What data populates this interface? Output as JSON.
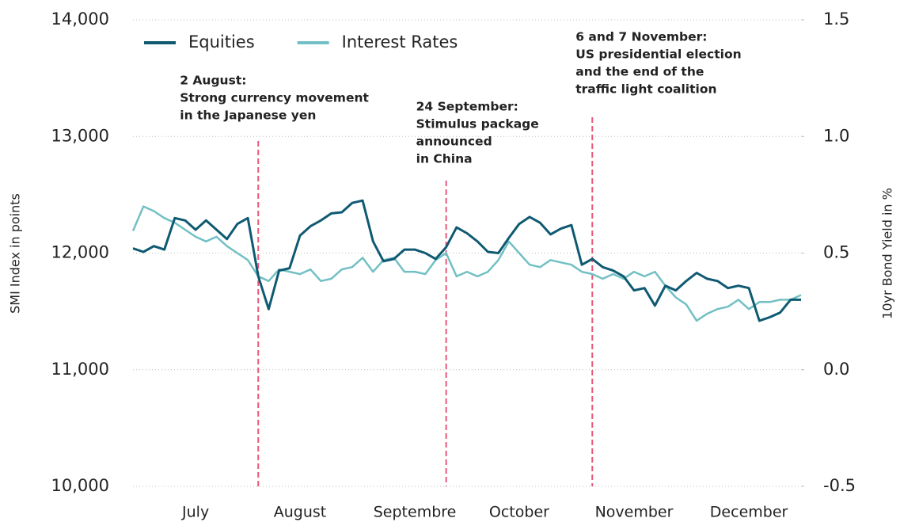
{
  "chart_data": {
    "type": "line",
    "y_label": "SMI Index in points",
    "y2_label": "10yr Bond Yield in %",
    "categories": [
      null,
      null,
      null,
      null,
      null,
      null,
      "July",
      null,
      null,
      null,
      null,
      null,
      null,
      null,
      null,
      null,
      "August",
      null,
      null,
      null,
      null,
      null,
      null,
      null,
      null,
      null,
      null,
      "Septembre",
      null,
      null,
      null,
      null,
      null,
      null,
      null,
      null,
      null,
      "October",
      null,
      null,
      null,
      null,
      null,
      null,
      null,
      null,
      null,
      null,
      "November",
      null,
      null,
      null,
      null,
      null,
      null,
      null,
      null,
      null,
      null,
      "December",
      null,
      null,
      null,
      null,
      null
    ],
    "series": [
      {
        "name": "Equities",
        "color": "#0f5a72",
        "axis": "y",
        "values": [
          12040,
          12010,
          12060,
          12030,
          12300,
          12280,
          12200,
          12280,
          12200,
          12120,
          12250,
          12300,
          11800,
          11520,
          11850,
          11870,
          12150,
          12230,
          12280,
          12340,
          12350,
          12430,
          12450,
          12100,
          11930,
          11950,
          12030,
          12030,
          12000,
          11950,
          12050,
          12220,
          12170,
          12100,
          12010,
          12000,
          12130,
          12250,
          12310,
          12260,
          12160,
          12210,
          12240,
          11900,
          11950,
          11880,
          11850,
          11800,
          11680,
          11700,
          11550,
          11720,
          11680,
          11760,
          11830,
          11780,
          11760,
          11700,
          11720,
          11700,
          11420,
          11450,
          11490,
          11600,
          11600
        ]
      },
      {
        "name": "Interest Rates",
        "color": "#72c0c4",
        "axis": "y2",
        "values": [
          0.595,
          0.7,
          0.68,
          0.65,
          0.63,
          0.6,
          0.57,
          0.55,
          0.57,
          0.53,
          0.5,
          0.47,
          0.4,
          0.38,
          0.43,
          0.42,
          0.41,
          0.43,
          0.38,
          0.39,
          0.43,
          0.44,
          0.48,
          0.42,
          0.47,
          0.48,
          0.42,
          0.42,
          0.41,
          0.47,
          0.5,
          0.4,
          0.42,
          0.4,
          0.42,
          0.47,
          0.55,
          0.5,
          0.45,
          0.44,
          0.47,
          0.46,
          0.45,
          0.42,
          0.41,
          0.39,
          0.41,
          0.39,
          0.42,
          0.4,
          0.42,
          0.36,
          0.31,
          0.28,
          0.21,
          0.24,
          0.26,
          0.27,
          0.3,
          0.26,
          0.29,
          0.29,
          0.3,
          0.3,
          0.32
        ]
      }
    ],
    "ylim": [
      10000,
      14000
    ],
    "yticks": [
      {
        "value": 10000,
        "label": "10,000"
      },
      {
        "value": 11000,
        "label": "11,000"
      },
      {
        "value": 12000,
        "label": "12,000"
      },
      {
        "value": 13000,
        "label": "13,000"
      },
      {
        "value": 14000,
        "label": "14,000"
      }
    ],
    "y2lim": [
      -0.5,
      1.5
    ],
    "y2ticks": [
      -0.5,
      {
        "value": 0,
        "label": "0.0"
      },
      0.5,
      {
        "value": 1,
        "label": "1.0"
      },
      1.5
    ],
    "grid": true,
    "legend": "top-left",
    "annotations": [
      {
        "at": 12,
        "color": "#e8577a",
        "lines": [
          "2 August:",
          "Strong currency movement",
          "in the Japanese yen"
        ]
      },
      {
        "at": 30,
        "color": "#e8577a",
        "lines": [
          "24 September:",
          "Stimulus package",
          "announced",
          "in China"
        ]
      },
      {
        "at": 44,
        "color": "#e8577a",
        "lines": [
          "6 and 7 November:",
          "US presidential election",
          "and the end of the",
          "traffic light coalition"
        ]
      }
    ]
  }
}
